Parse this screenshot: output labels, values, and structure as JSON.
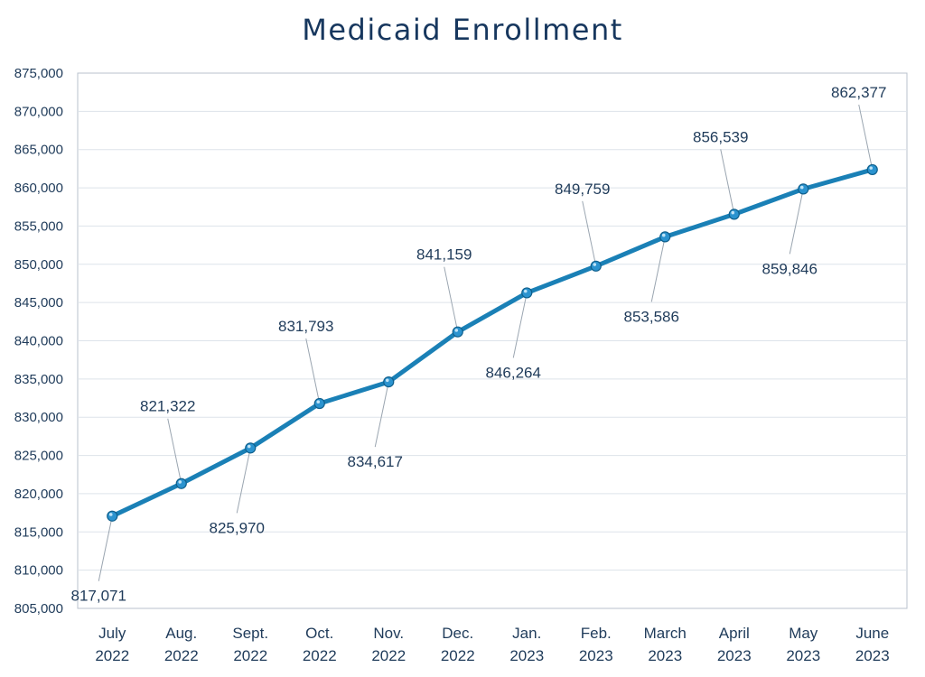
{
  "chart_data": {
    "type": "line",
    "title": "Medicaid Enrollment",
    "categories": [
      [
        "July",
        "2022"
      ],
      [
        "Aug.",
        "2022"
      ],
      [
        "Sept.",
        "2022"
      ],
      [
        "Oct.",
        "2022"
      ],
      [
        "Nov.",
        "2022"
      ],
      [
        "Dec.",
        "2022"
      ],
      [
        "Jan.",
        "2023"
      ],
      [
        "Feb.",
        "2023"
      ],
      [
        "March",
        "2023"
      ],
      [
        "April",
        "2023"
      ],
      [
        "May",
        "2023"
      ],
      [
        "June",
        "2023"
      ]
    ],
    "values": [
      817071,
      821322,
      825970,
      831793,
      834617,
      841159,
      846264,
      849759,
      853586,
      856539,
      859846,
      862377
    ],
    "data_labels": [
      "817,071",
      "821,322",
      "825,970",
      "831,793",
      "834,617",
      "841,159",
      "846,264",
      "849,759",
      "853,586",
      "856,539",
      "859,846",
      "862,377"
    ],
    "label_side": [
      "below",
      "above",
      "below",
      "above",
      "below",
      "above",
      "below",
      "above",
      "below",
      "above",
      "below",
      "above"
    ],
    "yticks": [
      "805,000",
      "810,000",
      "815,000",
      "820,000",
      "825,000",
      "830,000",
      "835,000",
      "840,000",
      "845,000",
      "850,000",
      "855,000",
      "860,000",
      "865,000",
      "870,000",
      "875,000"
    ],
    "ylim": [
      805000,
      875000
    ],
    "ystep": 5000,
    "xlabel": "",
    "ylabel": "",
    "grid": true,
    "legend": "none",
    "colors": {
      "line": "#1a80b6",
      "marker": "#2b93cf",
      "grid": "#dde3ea",
      "text": "#1f3b5a",
      "title": "#17375e",
      "leader": "#9aa5b0"
    }
  }
}
